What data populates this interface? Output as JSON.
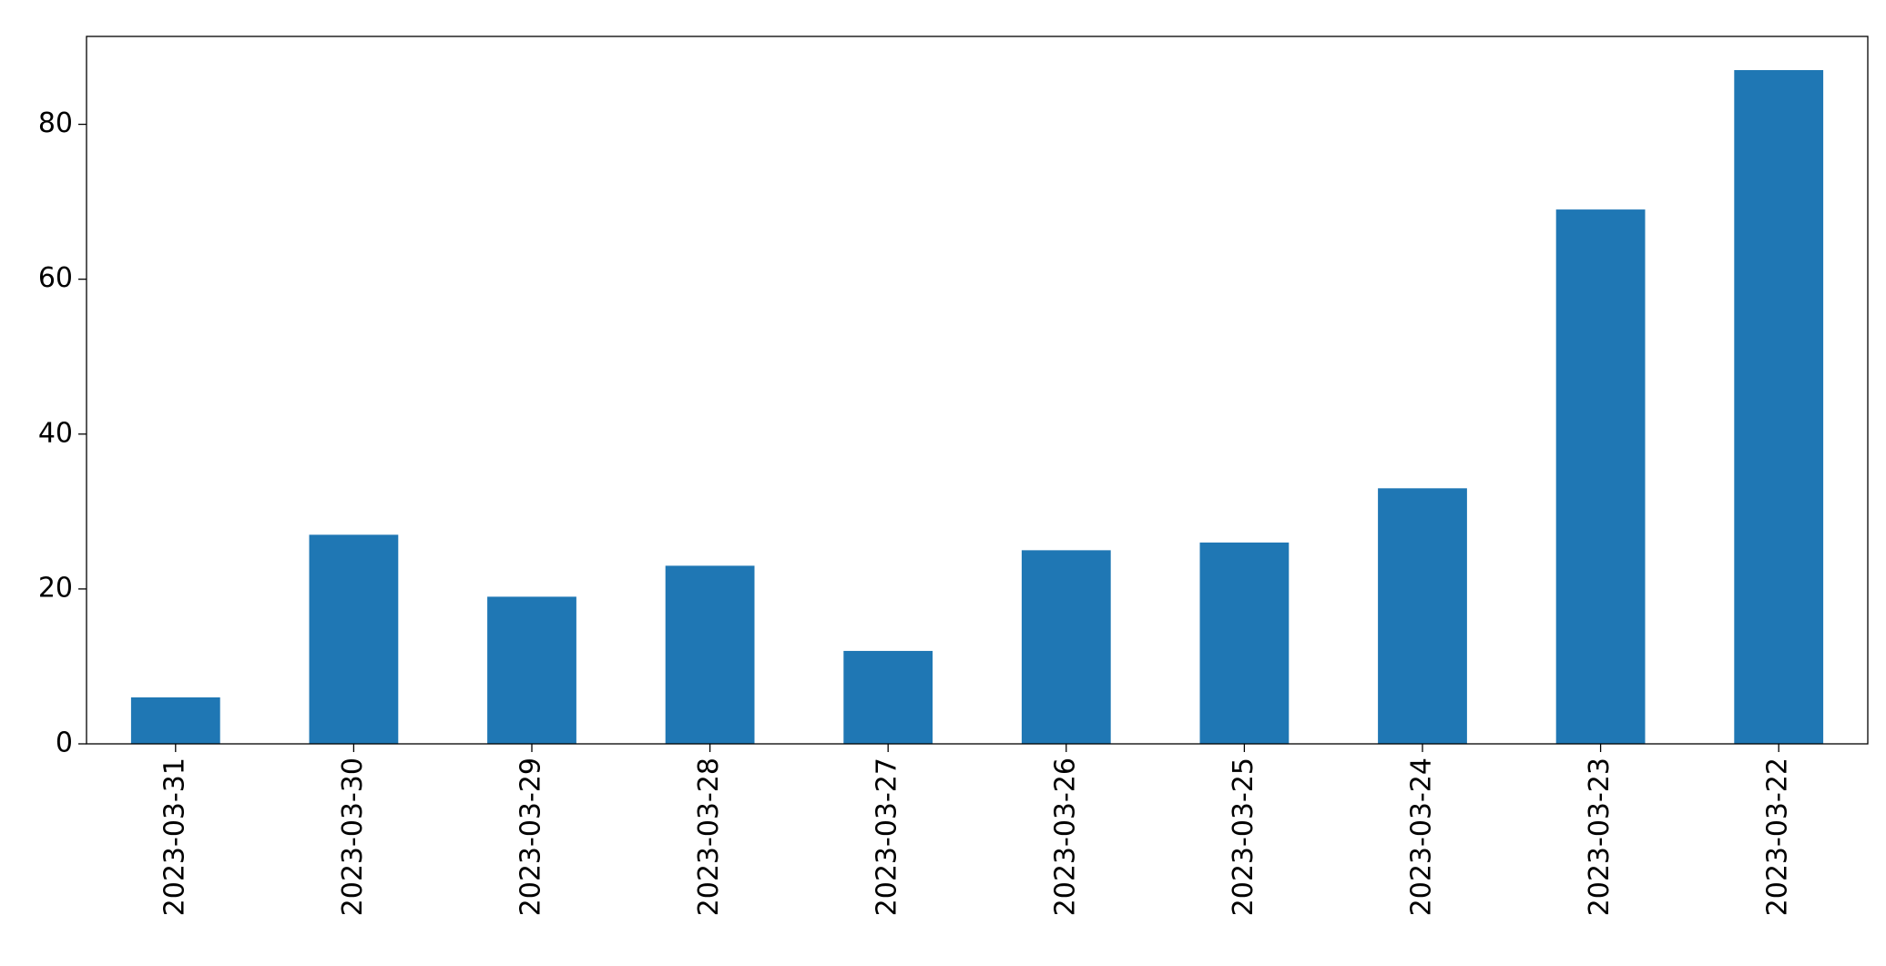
{
  "chart_data": {
    "type": "bar",
    "categories": [
      "2023-03-31",
      "2023-03-30",
      "2023-03-29",
      "2023-03-28",
      "2023-03-27",
      "2023-03-26",
      "2023-03-25",
      "2023-03-24",
      "2023-03-23",
      "2023-03-22"
    ],
    "values": [
      6,
      27,
      19,
      23,
      12,
      25,
      26,
      33,
      69,
      87
    ],
    "color": "#1f77b4",
    "ylim": [
      0,
      91.35
    ],
    "yticks": [
      0,
      20,
      40,
      60,
      80
    ],
    "grid": false
  }
}
